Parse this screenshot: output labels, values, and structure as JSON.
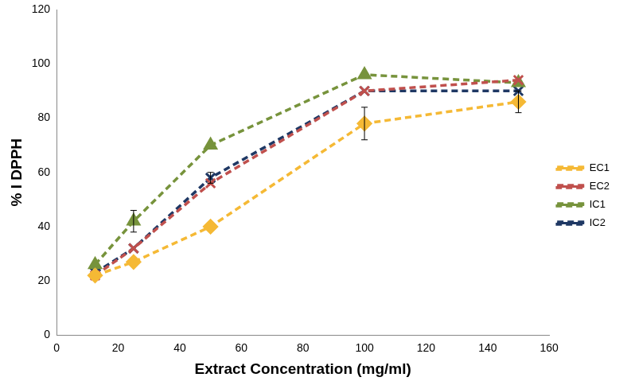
{
  "chart_data": {
    "type": "line",
    "x_label": "Extract Concentration (mg/ml)",
    "y_label": "% I DPPH",
    "x": [
      12.5,
      25,
      50,
      100,
      150
    ],
    "series": [
      {
        "name": "EC1",
        "color": "#f5b935",
        "marker": "diamond",
        "line_style": "dashed",
        "values": [
          22,
          27,
          40,
          78,
          86
        ],
        "errors": [
          null,
          null,
          null,
          6,
          4
        ]
      },
      {
        "name": "EC2",
        "color": "#c0504d",
        "marker": "x",
        "line_style": "dashed",
        "values": [
          22,
          32,
          56,
          90,
          94
        ],
        "errors": [
          null,
          null,
          null,
          null,
          null
        ]
      },
      {
        "name": "IC1",
        "color": "#77933c",
        "marker": "triangle",
        "line_style": "dashed",
        "values": [
          26,
          42,
          70,
          96,
          93
        ],
        "errors": [
          null,
          4,
          null,
          null,
          null
        ]
      },
      {
        "name": "IC2",
        "color": "#1f3864",
        "marker": "x",
        "line_style": "dashed",
        "values": [
          23,
          32,
          58,
          90,
          90
        ],
        "errors": [
          null,
          null,
          2,
          null,
          null
        ]
      }
    ],
    "xlim": [
      0,
      160
    ],
    "xticks": [
      0,
      20,
      40,
      60,
      80,
      100,
      120,
      140,
      160
    ],
    "ylim": [
      0,
      120
    ],
    "yticks": [
      0,
      20,
      40,
      60,
      80,
      100,
      120
    ],
    "grid": false,
    "legend": "right"
  }
}
